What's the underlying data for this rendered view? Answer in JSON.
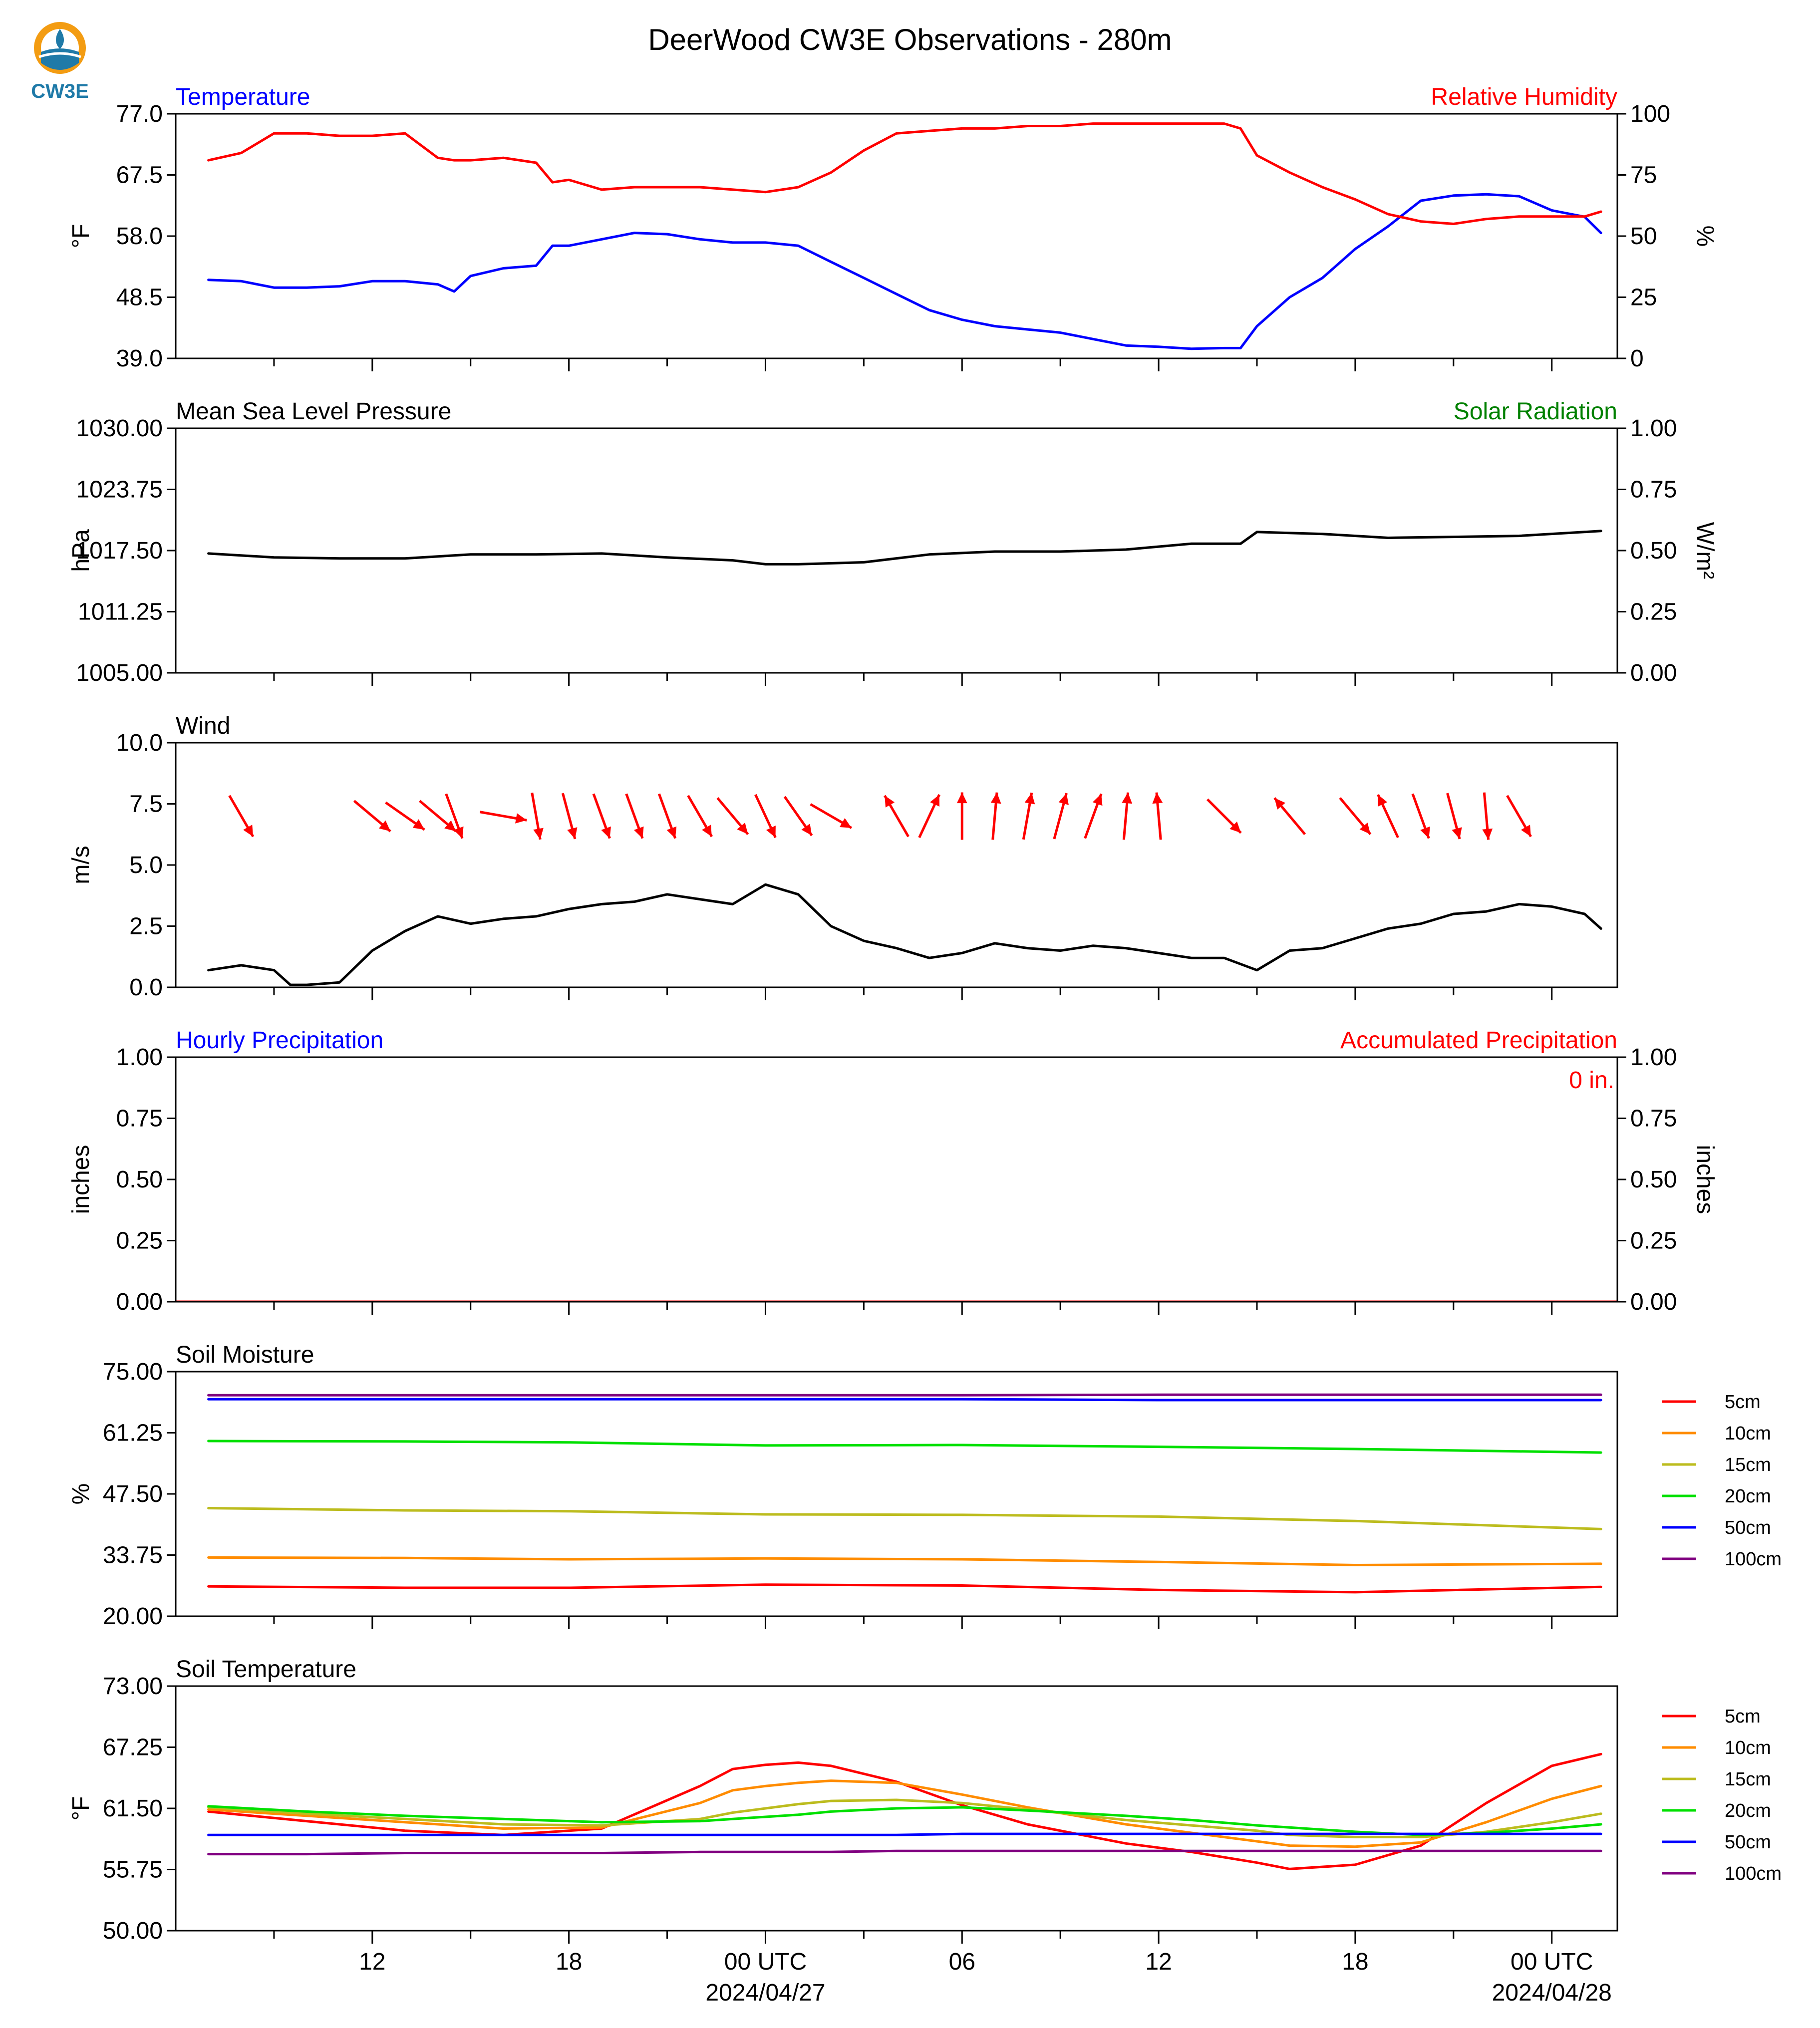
{
  "page": {
    "title": "DeerWood CW3E Observations - 280m",
    "logo_text": "CW3E"
  },
  "time_axis": {
    "tick_labels": [
      "12",
      "18",
      "00 UTC",
      "06",
      "12",
      "18",
      "00 UTC"
    ],
    "date_labels": [
      "2024/04/27",
      "2024/04/28"
    ]
  },
  "chart_data": [
    {
      "id": "temperature",
      "type": "line",
      "title_left": "Temperature",
      "title_right": "Relative Humidity",
      "title_left_color": "#0000ff",
      "title_right_color": "#ff0000",
      "ylabel": "°F",
      "ylabel_right": "%",
      "ylim": [
        39.0,
        77.0
      ],
      "ylim_right": [
        0,
        100
      ],
      "yticks": [
        "77.0",
        "67.5",
        "58.0",
        "48.5",
        "39.0"
      ],
      "yticks_right": [
        "100",
        "75",
        "50",
        "25",
        "0"
      ],
      "x_hours": [
        7,
        8,
        9,
        10,
        11,
        12,
        13,
        14,
        14.5,
        15,
        16,
        17,
        17.5,
        18,
        19,
        20,
        21,
        22,
        23,
        24,
        25,
        26,
        27,
        28,
        29,
        30,
        31,
        32,
        33,
        34,
        35,
        36,
        37,
        38,
        38.5,
        39,
        40,
        41,
        42,
        43,
        44,
        45,
        46,
        47,
        48,
        49,
        49.5
      ],
      "series": [
        {
          "color": "#0000ff",
          "axis": "left",
          "values": [
            51.2,
            51.0,
            50.0,
            50.0,
            50.2,
            51.0,
            51.0,
            50.5,
            49.4,
            51.8,
            53.0,
            53.4,
            56.5,
            56.5,
            57.5,
            58.5,
            58.3,
            57.5,
            57.0,
            57.0,
            56.5,
            54.0,
            51.5,
            49.0,
            46.5,
            45.0,
            44.0,
            43.5,
            43.0,
            42.0,
            41.0,
            40.8,
            40.5,
            40.6,
            40.6,
            44.0,
            48.5,
            51.5,
            56.0,
            59.5,
            63.5,
            64.3,
            64.5,
            64.2,
            62.0,
            61.0,
            58.5
          ]
        },
        {
          "color": "#ff0000",
          "axis": "right",
          "values": [
            81,
            84,
            92,
            92,
            91,
            91,
            92,
            82,
            81,
            81,
            82,
            80,
            72,
            73,
            69,
            70,
            70,
            70,
            69,
            68,
            70,
            76,
            85,
            92,
            93,
            94,
            94,
            95,
            95,
            96,
            96,
            96,
            96,
            96,
            94,
            83,
            76,
            70,
            65,
            59,
            56,
            55,
            57,
            58,
            58,
            58,
            60
          ]
        }
      ]
    },
    {
      "id": "pressure",
      "type": "line",
      "title_left": "Mean Sea Level Pressure",
      "title_right": "Solar Radiation",
      "title_left_color": "#000000",
      "title_right_color": "#008000",
      "ylabel": "hPa",
      "ylabel_right": "W/m²",
      "ylim": [
        1005.0,
        1030.0
      ],
      "ylim_right": [
        0.0,
        1.0
      ],
      "yticks": [
        "1030.00",
        "1023.75",
        "1017.50",
        "1011.25",
        "1005.00"
      ],
      "yticks_right": [
        "1.00",
        "0.75",
        "0.50",
        "0.25",
        "0.00"
      ],
      "x_hours": [
        7,
        9,
        11,
        13,
        15,
        17,
        19,
        21,
        23,
        24,
        25,
        27,
        29,
        31,
        33,
        35,
        37,
        38.5,
        39,
        41,
        43,
        45,
        47,
        49.5
      ],
      "series": [
        {
          "color": "#000000",
          "axis": "left",
          "values": [
            1017.2,
            1016.8,
            1016.7,
            1016.7,
            1017.1,
            1017.1,
            1017.2,
            1016.8,
            1016.5,
            1016.1,
            1016.1,
            1016.3,
            1017.1,
            1017.4,
            1017.4,
            1017.6,
            1018.2,
            1018.2,
            1019.4,
            1019.2,
            1018.8,
            1018.9,
            1019.0,
            1019.5
          ]
        }
      ]
    },
    {
      "id": "wind",
      "type": "line",
      "title_left": "Wind",
      "title_left_color": "#000000",
      "ylabel": "m/s",
      "ylim": [
        0.0,
        10.0
      ],
      "yticks": [
        "10.0",
        "7.5",
        "5.0",
        "2.5",
        "0.0"
      ],
      "x_hours": [
        7,
        8,
        9,
        9.5,
        10,
        11,
        12,
        13,
        14,
        15,
        16,
        17,
        18,
        19,
        20,
        21,
        22,
        23,
        24,
        25,
        26,
        27,
        28,
        29,
        30,
        31,
        32,
        33,
        34,
        35,
        36,
        37,
        38,
        39,
        40,
        41,
        42,
        43,
        44,
        45,
        46,
        47,
        48,
        49,
        49.5
      ],
      "series": [
        {
          "color": "#000000",
          "axis": "left",
          "values": [
            0.7,
            0.9,
            0.7,
            0.1,
            0.1,
            0.2,
            1.5,
            2.3,
            2.9,
            2.6,
            2.8,
            2.9,
            3.2,
            3.4,
            3.5,
            3.8,
            3.6,
            3.4,
            4.2,
            3.8,
            2.5,
            1.9,
            1.6,
            1.2,
            1.4,
            1.8,
            1.6,
            1.5,
            1.7,
            1.6,
            1.4,
            1.2,
            1.2,
            0.7,
            1.5,
            1.6,
            2.0,
            2.4,
            2.6,
            3.0,
            3.1,
            3.4,
            3.3,
            3.0,
            2.4
          ]
        }
      ],
      "barbs": {
        "color": "#ff0000",
        "x_hours": [
          8,
          12,
          13,
          14,
          14.5,
          16,
          17,
          18,
          19,
          20,
          21,
          22,
          23,
          24,
          25,
          26,
          28,
          29,
          30,
          31,
          32,
          33,
          34,
          35,
          36,
          38,
          40,
          42,
          43,
          44,
          45,
          46,
          47
        ],
        "direction_deg": [
          330,
          310,
          305,
          310,
          340,
          280,
          350,
          345,
          340,
          340,
          340,
          330,
          320,
          335,
          325,
          300,
          150,
          205,
          180,
          185,
          190,
          195,
          200,
          185,
          175,
          315,
          140,
          320,
          155,
          340,
          345,
          355,
          330
        ]
      }
    },
    {
      "id": "precipitation",
      "type": "line",
      "title_left": "Hourly Precipitation",
      "title_right": "Accumulated Precipitation",
      "title_left_color": "#0000ff",
      "title_right_color": "#ff0000",
      "annotation": "0 in.",
      "ylabel": "inches",
      "ylabel_right": "inches",
      "ylim": [
        0.0,
        1.0
      ],
      "ylim_right": [
        0.0,
        1.0
      ],
      "yticks": [
        "1.00",
        "0.75",
        "0.50",
        "0.25",
        "0.00"
      ],
      "yticks_right": [
        "1.00",
        "0.75",
        "0.50",
        "0.25",
        "0.00"
      ],
      "x_hours": [
        6,
        50
      ],
      "series": [
        {
          "color": "#ff0000",
          "axis": "left",
          "values": [
            0.0,
            0.0
          ]
        }
      ]
    },
    {
      "id": "soil_moisture",
      "type": "line",
      "title_left": "Soil Moisture",
      "title_left_color": "#000000",
      "ylabel": "%",
      "ylim": [
        20.0,
        75.0
      ],
      "yticks": [
        "75.00",
        "61.25",
        "47.50",
        "33.75",
        "20.00"
      ],
      "x_hours": [
        7,
        13,
        18,
        24,
        30,
        36,
        42,
        49.5
      ],
      "series": [
        {
          "name": "5cm",
          "color": "#ff0000",
          "values": [
            26.7,
            26.4,
            26.4,
            27.1,
            26.9,
            25.9,
            25.4,
            26.6
          ]
        },
        {
          "name": "10cm",
          "color": "#ff8c00",
          "values": [
            33.2,
            33.1,
            32.8,
            33.0,
            32.8,
            32.2,
            31.5,
            31.8
          ]
        },
        {
          "name": "15cm",
          "color": "#bcbc1e",
          "values": [
            44.3,
            43.8,
            43.6,
            42.9,
            42.8,
            42.4,
            41.4,
            39.6
          ]
        },
        {
          "name": "20cm",
          "color": "#00e000",
          "values": [
            59.4,
            59.3,
            59.1,
            58.4,
            58.5,
            58.1,
            57.6,
            56.8
          ]
        },
        {
          "name": "50cm",
          "color": "#0000ff",
          "values": [
            68.8,
            68.8,
            68.8,
            68.8,
            68.8,
            68.6,
            68.6,
            68.6
          ]
        },
        {
          "name": "100cm",
          "color": "#800080",
          "values": [
            69.7,
            69.7,
            69.7,
            69.7,
            69.7,
            69.8,
            69.8,
            69.8
          ]
        }
      ]
    },
    {
      "id": "soil_temperature",
      "type": "line",
      "title_left": "Soil Temperature",
      "title_left_color": "#000000",
      "ylabel": "°F",
      "ylim": [
        50.0,
        73.0
      ],
      "yticks": [
        "73.00",
        "67.25",
        "61.50",
        "55.75",
        "50.00"
      ],
      "x_hours": [
        7,
        10,
        13,
        16,
        19,
        22,
        23,
        24,
        25,
        26,
        28,
        30,
        32,
        35,
        37,
        39,
        40,
        42,
        44,
        46,
        48,
        49.5
      ],
      "series": [
        {
          "name": "5cm",
          "color": "#ff0000",
          "values": [
            61.2,
            60.3,
            59.4,
            59.0,
            59.6,
            63.6,
            65.2,
            65.6,
            65.8,
            65.5,
            64.0,
            61.8,
            60.0,
            58.2,
            57.4,
            56.4,
            55.8,
            56.2,
            58.0,
            62.0,
            65.5,
            66.6
          ]
        },
        {
          "name": "10cm",
          "color": "#ff8c00",
          "values": [
            61.4,
            60.8,
            60.2,
            59.6,
            59.7,
            62.0,
            63.2,
            63.6,
            63.9,
            64.1,
            63.9,
            62.8,
            61.6,
            60.0,
            59.2,
            58.4,
            58.0,
            57.9,
            58.3,
            60.2,
            62.4,
            63.6
          ]
        },
        {
          "name": "15cm",
          "color": "#bcbc1e",
          "values": [
            61.6,
            61.0,
            60.5,
            60.0,
            59.9,
            60.5,
            61.1,
            61.5,
            61.9,
            62.2,
            62.3,
            62.0,
            61.4,
            60.4,
            59.9,
            59.4,
            59.0,
            58.8,
            58.8,
            59.3,
            60.2,
            61.0
          ]
        },
        {
          "name": "20cm",
          "color": "#00e000",
          "values": [
            61.7,
            61.2,
            60.8,
            60.5,
            60.2,
            60.3,
            60.5,
            60.7,
            60.9,
            61.2,
            61.5,
            61.6,
            61.3,
            60.8,
            60.4,
            59.9,
            59.7,
            59.3,
            59.0,
            59.2,
            59.6,
            60.0
          ]
        },
        {
          "name": "50cm",
          "color": "#0000ff",
          "values": [
            59.0,
            59.0,
            59.0,
            59.0,
            59.0,
            59.0,
            59.0,
            59.0,
            59.0,
            59.0,
            59.0,
            59.1,
            59.1,
            59.1,
            59.1,
            59.1,
            59.1,
            59.1,
            59.1,
            59.1,
            59.1,
            59.1
          ]
        },
        {
          "name": "100cm",
          "color": "#800080",
          "values": [
            57.2,
            57.2,
            57.3,
            57.3,
            57.3,
            57.4,
            57.4,
            57.4,
            57.4,
            57.4,
            57.5,
            57.5,
            57.5,
            57.5,
            57.5,
            57.5,
            57.5,
            57.5,
            57.5,
            57.5,
            57.5,
            57.5
          ]
        }
      ]
    }
  ]
}
